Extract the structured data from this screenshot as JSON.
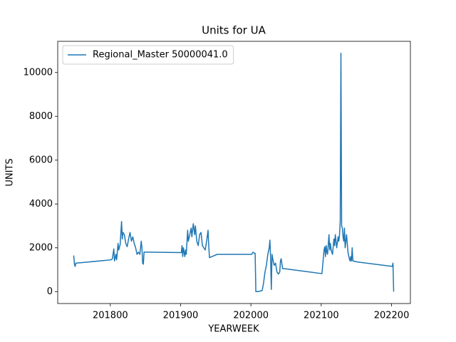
{
  "chart_data": {
    "type": "line",
    "title": "Units for UA",
    "x_label": "YEARWEEK",
    "y_label": "UNITS",
    "x": [
      201748,
      201749,
      201750,
      201751,
      201752,
      201801,
      201803,
      201805,
      201806,
      201808,
      201809,
      201811,
      201812,
      201814,
      201816,
      201817,
      201818,
      201820,
      201822,
      201824,
      201826,
      201828,
      201830,
      201832,
      201834,
      201836,
      201838,
      201840,
      201842,
      201844,
      201845,
      201846,
      201847,
      201848,
      201852,
      201901,
      201902,
      201903,
      201904,
      201906,
      201907,
      201908,
      201910,
      201911,
      201913,
      201915,
      201916,
      201918,
      201920,
      201921,
      201923,
      201925,
      201927,
      201929,
      201931,
      201933,
      201935,
      201937,
      201939,
      201940,
      201941,
      201952,
      202001,
      202003,
      202005,
      202006,
      202007,
      202010,
      202016,
      202018,
      202020,
      202022,
      202024,
      202026,
      202027,
      202028,
      202029,
      202030,
      202031,
      202033,
      202035,
      202037,
      202039,
      202041,
      202042,
      202043,
      202045,
      202047,
      202101,
      202104,
      202105,
      202106,
      202107,
      202108,
      202109,
      202111,
      202112,
      202113,
      202114,
      202116,
      202118,
      202119,
      202120,
      202122,
      202124,
      202125,
      202126,
      202127,
      202128,
      202129,
      202130,
      202131,
      202132,
      202133,
      202134,
      202136,
      202137,
      202138,
      202140,
      202141,
      202142,
      202143,
      202144,
      202145,
      202152,
      202201,
      202202,
      202203
    ],
    "series": [
      {
        "name": "Regional_Master 50000041.0",
        "color": "#1f77b4",
        "values": [
          1650,
          1250,
          1150,
          1300,
          1300,
          1450,
          1500,
          1950,
          1400,
          1700,
          1450,
          2200,
          1900,
          2150,
          3200,
          2400,
          2700,
          2600,
          2200,
          2050,
          2400,
          2700,
          2300,
          2500,
          2200,
          2000,
          1700,
          1800,
          1700,
          2300,
          2000,
          1300,
          1250,
          1800,
          1800,
          1780,
          2100,
          1600,
          2000,
          1600,
          1900,
          1700,
          2800,
          2300,
          2600,
          2900,
          2500,
          3100,
          2600,
          3000,
          2300,
          2100,
          2600,
          2700,
          2100,
          2000,
          1900,
          2300,
          2800,
          2100,
          1550,
          1700,
          1700,
          1800,
          1750,
          1750,
          0,
          0,
          50,
          400,
          900,
          1200,
          1700,
          2000,
          2350,
          1500,
          100,
          1700,
          1500,
          1200,
          1300,
          900,
          800,
          900,
          1400,
          1500,
          1050,
          1050,
          820,
          1900,
          2050,
          1600,
          2100,
          1800,
          1700,
          2600,
          1900,
          2200,
          1900,
          1700,
          2400,
          2100,
          2600,
          2000,
          2500,
          2300,
          2600,
          3200,
          10880,
          3000,
          2900,
          2500,
          2300,
          2900,
          2000,
          2600,
          2200,
          1800,
          1500,
          1400,
          1600,
          1400,
          2000,
          1400,
          1350,
          1150,
          1300,
          0
        ]
      }
    ],
    "xlim": [
      201725.2,
      202226.8
    ],
    "xticks": [
      201800,
      201900,
      202000,
      202100,
      202200
    ],
    "ylim": [
      -544,
      11424
    ],
    "yticks": [
      0,
      2000,
      4000,
      6000,
      8000,
      10000
    ],
    "legend": "upper left"
  }
}
